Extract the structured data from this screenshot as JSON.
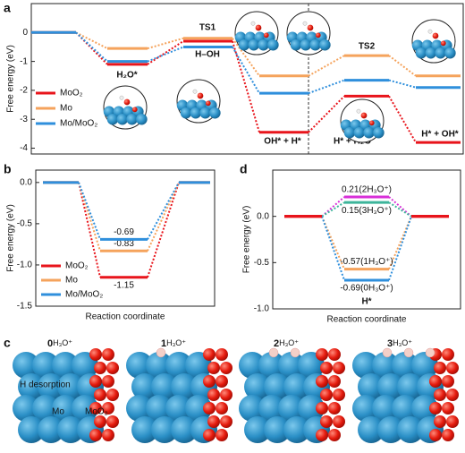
{
  "chart_data": [
    {
      "type": "energy_diagram",
      "panel_label": "a",
      "ylabel": "Free energy (eV)",
      "ylim": [
        -4.2,
        1.0
      ],
      "yticks": [
        0,
        -1,
        -2,
        -3,
        -4
      ],
      "categories": [
        null,
        "H₂O*",
        "TS1",
        "OH* + H*",
        "TS2",
        "H* + OH*"
      ],
      "annotations": [
        "H–OH",
        "H* + H₂O"
      ],
      "legend": "left",
      "series": [
        {
          "name": "MoO₂",
          "color": "#e8141b",
          "values": [
            0,
            -1.1,
            -0.3,
            -3.45,
            -2.2,
            -3.8
          ]
        },
        {
          "name": "Mo",
          "color": "#f5a35c",
          "values": [
            0,
            -0.55,
            -0.2,
            -1.5,
            -0.8,
            -1.5
          ]
        },
        {
          "name": "Mo/MoO₂",
          "color": "#2f8fdc",
          "values": [
            0,
            -1.0,
            -0.5,
            -2.1,
            -1.65,
            -1.9
          ]
        }
      ]
    },
    {
      "type": "energy_diagram",
      "panel_label": "b",
      "ylabel": "Free energy (eV)",
      "xlabel": "Reaction coordinate",
      "ylim": [
        -1.5,
        0.15
      ],
      "yticks": [
        {
          "value": 0,
          "label": "0.0"
        },
        -0.5,
        {
          "value": -1,
          "label": "-1.0"
        },
        {
          "value": -1.5,
          "label": "-1.5"
        }
      ],
      "categories": [
        null,
        null,
        null
      ],
      "legend": "lower left",
      "series": [
        {
          "name": "MoO₂",
          "color": "#e8141b",
          "values": [
            0,
            -1.15,
            0
          ]
        },
        {
          "name": "Mo",
          "color": "#f5a35c",
          "values": [
            0,
            -0.83,
            0
          ]
        },
        {
          "name": "Mo/MoO₂",
          "color": "#2f8fdc",
          "values": [
            0,
            -0.69,
            0
          ]
        }
      ]
    },
    {
      "type": "energy_diagram",
      "panel_label": "d",
      "ylabel": "Free energy (eV)",
      "xlabel": "Reaction coordinate",
      "ylim": [
        -1.0,
        0.5
      ],
      "yticks": [
        {
          "value": 0,
          "label": "0.0"
        },
        -0.5,
        {
          "value": -1,
          "label": "-1.0"
        }
      ],
      "categories": [
        null,
        null,
        null
      ],
      "annotations": [
        "H*"
      ],
      "end_color": "#e8141b",
      "series": [
        {
          "color": "#d82fd8",
          "values": [
            0,
            0.21,
            0
          ],
          "value_labels": [
            null,
            "0.21(2H₃O⁺)",
            null
          ]
        },
        {
          "color": "#3db59b",
          "values": [
            0,
            0.15,
            0
          ],
          "value_labels": [
            null,
            "0.15(3H₃O⁺)",
            null
          ]
        },
        {
          "color": "#f5a35c",
          "values": [
            0,
            -0.57,
            0
          ],
          "value_labels": [
            null,
            "-0.57(1H₃O⁺)",
            null
          ]
        },
        {
          "color": "#2f8fdc",
          "values": [
            0,
            -0.69,
            0
          ],
          "value_labels": [
            null,
            "-0.69(0H₃O⁺)",
            null
          ]
        }
      ]
    }
  ],
  "panel_c": {
    "panel_label": "c",
    "captions": [
      {
        "count": 0,
        "species": "H₃O⁺"
      },
      {
        "count": 1,
        "species": "H₃O⁺"
      },
      {
        "count": 2,
        "species": "H₃O⁺"
      },
      {
        "count": 3,
        "species": "H₃O⁺"
      }
    ],
    "annotations": [
      "H desorption",
      "Mo",
      "MoO₂"
    ]
  }
}
